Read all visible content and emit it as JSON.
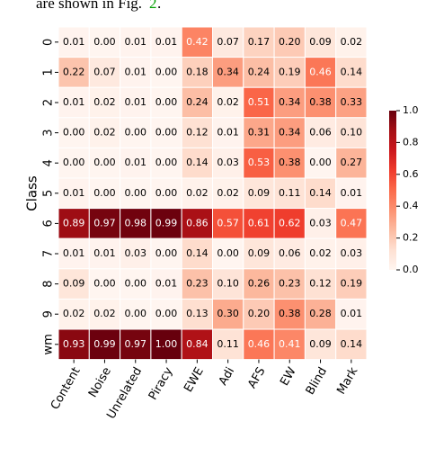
{
  "chart_data": {
    "type": "heatmap",
    "annotations": [
      "are shown in Fig.",
      "2",
      "."
    ],
    "ylabel": "Class",
    "rows": [
      "0",
      "1",
      "2",
      "3",
      "4",
      "5",
      "6",
      "7",
      "8",
      "9",
      "wm"
    ],
    "columns": [
      "Content",
      "Noise",
      "Unrelated",
      "Piracy",
      "EWE",
      "Adi",
      "AFS",
      "EW",
      "Blind",
      "Mark"
    ],
    "values": [
      [
        0.01,
        0.0,
        0.01,
        0.01,
        0.42,
        0.07,
        0.17,
        0.2,
        0.09,
        0.02
      ],
      [
        0.22,
        0.07,
        0.01,
        0.0,
        0.18,
        0.34,
        0.24,
        0.19,
        0.46,
        0.14
      ],
      [
        0.01,
        0.02,
        0.01,
        0.0,
        0.24,
        0.02,
        0.51,
        0.34,
        0.38,
        0.33
      ],
      [
        0.0,
        0.02,
        0.0,
        0.0,
        0.12,
        0.01,
        0.31,
        0.34,
        0.06,
        0.1
      ],
      [
        0.0,
        0.0,
        0.01,
        0.0,
        0.14,
        0.03,
        0.53,
        0.38,
        0.0,
        0.27
      ],
      [
        0.01,
        0.0,
        0.0,
        0.0,
        0.02,
        0.02,
        0.09,
        0.11,
        0.14,
        0.01
      ],
      [
        0.89,
        0.97,
        0.98,
        0.99,
        0.86,
        0.57,
        0.61,
        0.62,
        0.03,
        0.47
      ],
      [
        0.01,
        0.01,
        0.03,
        0.0,
        0.14,
        0.0,
        0.09,
        0.06,
        0.02,
        0.03
      ],
      [
        0.09,
        0.0,
        0.0,
        0.01,
        0.23,
        0.1,
        0.26,
        0.23,
        0.12,
        0.19
      ],
      [
        0.02,
        0.02,
        0.0,
        0.0,
        0.13,
        0.3,
        0.2,
        0.38,
        0.28,
        0.01
      ],
      [
        0.93,
        0.99,
        0.97,
        1.0,
        0.84,
        0.11,
        0.46,
        0.41,
        0.09,
        0.14
      ]
    ],
    "value_labels": [
      [
        "0.01",
        "0.00",
        "0.01",
        "0.01",
        "0.42",
        "0.07",
        "0.17",
        "0.20",
        "0.09",
        "0.02"
      ],
      [
        "0.22",
        "0.07",
        "0.01",
        "0.00",
        "0.18",
        "0.34",
        "0.24",
        "0.19",
        "0.46",
        "0.14"
      ],
      [
        "0.01",
        "0.02",
        "0.01",
        "0.00",
        "0.24",
        "0.02",
        "0.51",
        "0.34",
        "0.38",
        "0.33"
      ],
      [
        "0.00",
        "0.02",
        "0.00",
        "0.00",
        "0.12",
        "0.01",
        "0.31",
        "0.34",
        "0.06",
        "0.10"
      ],
      [
        "0.00",
        "0.00",
        "0.01",
        "0.00",
        "0.14",
        "0.03",
        "0.53",
        "0.38",
        "0.00",
        "0.27"
      ],
      [
        "0.01",
        "0.00",
        "0.00",
        "0.00",
        "0.02",
        "0.02",
        "0.09",
        "0.11",
        "0.14",
        "0.01"
      ],
      [
        "0.89",
        "0.97",
        "0.98",
        "0.99",
        "0.86",
        "0.57",
        "0.61",
        "0.62",
        "0.03",
        "0.47"
      ],
      [
        "0.01",
        "0.01",
        "0.03",
        "0.00",
        "0.14",
        "0.00",
        "0.09",
        "0.06",
        "0.02",
        "0.03"
      ],
      [
        "0.09",
        "0.00",
        "0.00",
        "0.01",
        "0.23",
        "0.10",
        "0.26",
        "0.23",
        "0.12",
        "0.19"
      ],
      [
        "0.02",
        "0.02",
        "0.00",
        "0.00",
        "0.13",
        "0.30",
        "0.20",
        "0.38",
        "0.28",
        "0.01"
      ],
      [
        "0.93",
        "0.99",
        "0.97",
        "1.00",
        "0.84",
        "0.11",
        "0.46",
        "0.41",
        "0.09",
        "0.14"
      ]
    ],
    "colormap": "Reds",
    "clim": [
      0,
      1
    ],
    "cticks": [
      {
        "value": 0,
        "label": "0.0"
      },
      {
        "value": 0.2,
        "label": "0.2"
      },
      {
        "value": 0.4,
        "label": "0.4"
      },
      {
        "value": 0.6,
        "label": "0.6"
      },
      {
        "value": 0.8,
        "label": "0.8"
      },
      {
        "value": 1,
        "label": "1.0"
      }
    ]
  }
}
